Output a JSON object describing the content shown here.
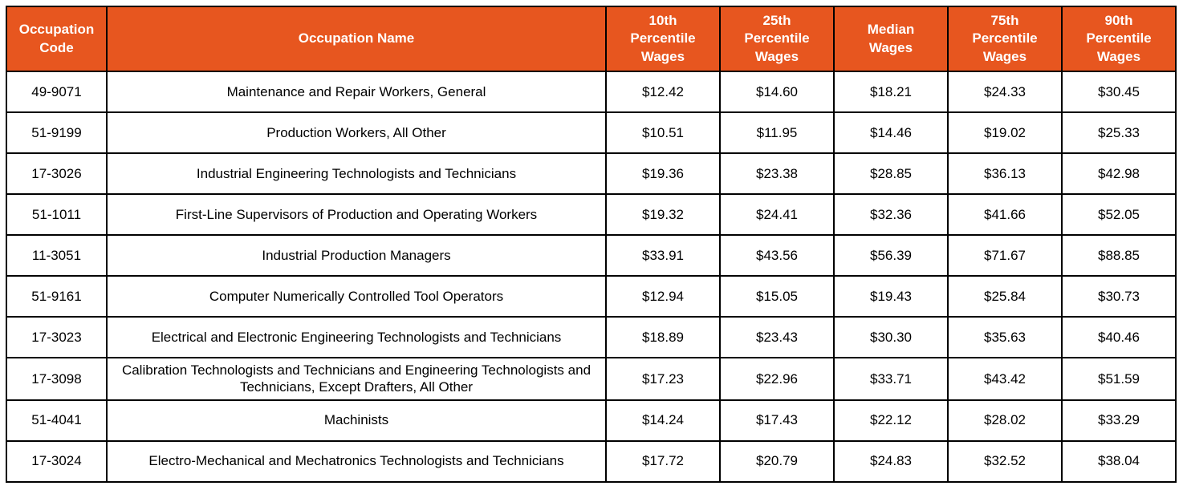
{
  "page": {
    "background_color": "#ffffff"
  },
  "table": {
    "header_bg_color": "#e7561f",
    "header_text_color": "#ffffff",
    "border_color": "#000000",
    "columns": [
      {
        "id": "code",
        "label": "Occupation\nCode"
      },
      {
        "id": "name",
        "label": "Occupation Name"
      },
      {
        "id": "p10",
        "label": "10th\nPercentile\nWages"
      },
      {
        "id": "p25",
        "label": "25th\nPercentile\nWages"
      },
      {
        "id": "median",
        "label": "Median\nWages"
      },
      {
        "id": "p75",
        "label": "75th\nPercentile\nWages"
      },
      {
        "id": "p90",
        "label": "90th\nPercentile\nWages"
      }
    ],
    "rows": [
      {
        "code": "49-9071",
        "name": "Maintenance and Repair Workers, General",
        "p10": "$12.42",
        "p25": "$14.60",
        "median": "$18.21",
        "p75": "$24.33",
        "p90": "$30.45"
      },
      {
        "code": "51-9199",
        "name": "Production Workers, All Other",
        "p10": "$10.51",
        "p25": "$11.95",
        "median": "$14.46",
        "p75": "$19.02",
        "p90": "$25.33"
      },
      {
        "code": "17-3026",
        "name": "Industrial Engineering Technologists and Technicians",
        "p10": "$19.36",
        "p25": "$23.38",
        "median": "$28.85",
        "p75": "$36.13",
        "p90": "$42.98"
      },
      {
        "code": "51-1011",
        "name": "First-Line Supervisors of Production and Operating Workers",
        "p10": "$19.32",
        "p25": "$24.41",
        "median": "$32.36",
        "p75": "$41.66",
        "p90": "$52.05"
      },
      {
        "code": "11-3051",
        "name": "Industrial Production Managers",
        "p10": "$33.91",
        "p25": "$43.56",
        "median": "$56.39",
        "p75": "$71.67",
        "p90": "$88.85"
      },
      {
        "code": "51-9161",
        "name": "Computer Numerically Controlled Tool Operators",
        "p10": "$12.94",
        "p25": "$15.05",
        "median": "$19.43",
        "p75": "$25.84",
        "p90": "$30.73"
      },
      {
        "code": "17-3023",
        "name": "Electrical and Electronic Engineering Technologists and Technicians",
        "p10": "$18.89",
        "p25": "$23.43",
        "median": "$30.30",
        "p75": "$35.63",
        "p90": "$40.46"
      },
      {
        "code": "17-3098",
        "name": "Calibration Technologists and Technicians and Engineering Technologists and Technicians, Except Drafters, All Other",
        "p10": "$17.23",
        "p25": "$22.96",
        "median": "$33.71",
        "p75": "$43.42",
        "p90": "$51.59"
      },
      {
        "code": "51-4041",
        "name": "Machinists",
        "p10": "$14.24",
        "p25": "$17.43",
        "median": "$22.12",
        "p75": "$28.02",
        "p90": "$33.29"
      },
      {
        "code": "17-3024",
        "name": "Electro-Mechanical and Mechatronics Technologists and Technicians",
        "p10": "$17.72",
        "p25": "$20.79",
        "median": "$24.83",
        "p75": "$32.52",
        "p90": "$38.04"
      }
    ]
  }
}
